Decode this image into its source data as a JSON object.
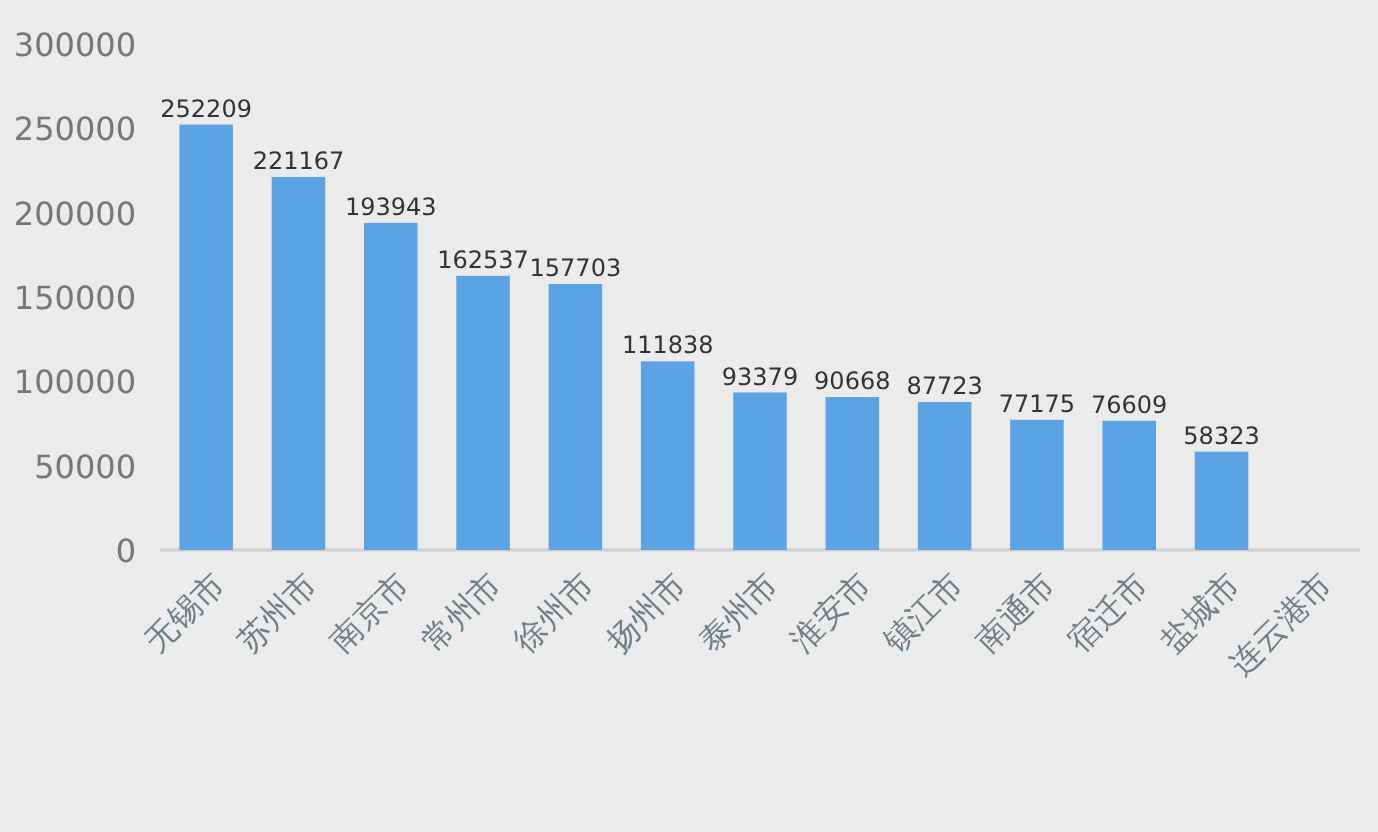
{
  "chart_data": {
    "type": "bar",
    "categories": [
      "无锡市",
      "苏州市",
      "南京市",
      "常州市",
      "徐州市",
      "扬州市",
      "泰州市",
      "淮安市",
      "镇江市",
      "南通市",
      "宿迁市",
      "盐城市",
      "连云港市"
    ],
    "values": [
      252209,
      221167,
      193943,
      162537,
      157703,
      111838,
      93379,
      90668,
      87723,
      77175,
      76609,
      58323,
      null
    ],
    "color": "#5ba3e2",
    "ylim": [
      0,
      300000
    ],
    "yticks": [
      0,
      50000,
      100000,
      150000,
      200000,
      250000,
      300000
    ],
    "data_labels": true
  }
}
